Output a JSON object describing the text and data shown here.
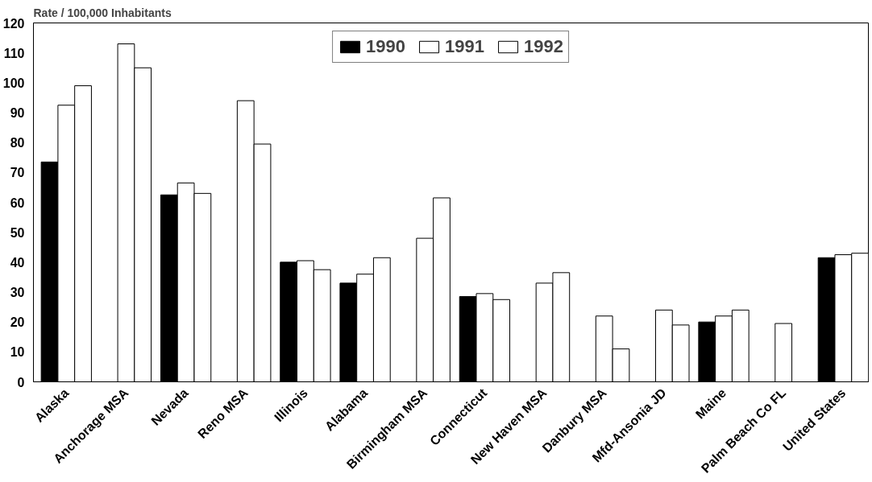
{
  "chart_data": {
    "type": "bar",
    "ylabel": "Rate / 100,000 Inhabitants",
    "categories": [
      "Alaska",
      "Anchorage MSA",
      "Nevada",
      "Reno MSA",
      "Illinois",
      "Alabama",
      "Birmingham MSA",
      "Connecticut",
      "New Haven MSA",
      "Danbury MSA",
      "Mfd-Ansonia JD",
      "Maine",
      "Palm Beach Co FL",
      "United States"
    ],
    "series": [
      {
        "name": "1990",
        "color": "#000000",
        "values": [
          73.5,
          null,
          62.5,
          null,
          40,
          33,
          null,
          28.5,
          null,
          null,
          null,
          20,
          null,
          41.5
        ]
      },
      {
        "name": "1991",
        "color": "#ffffff",
        "values": [
          92.5,
          113,
          66.5,
          94,
          40.5,
          36,
          48,
          29.5,
          33,
          22,
          24,
          22,
          19.5,
          42.5
        ]
      },
      {
        "name": "1992",
        "color": "#ffffff",
        "values": [
          99,
          105,
          63,
          79.5,
          37.5,
          41.5,
          61.5,
          27.5,
          36.5,
          11,
          19,
          24,
          null,
          43
        ]
      }
    ],
    "ylim": [
      0,
      120
    ],
    "yticks": [
      0,
      10,
      20,
      30,
      40,
      50,
      60,
      70,
      80,
      90,
      100,
      110,
      120
    ],
    "grid": false,
    "legend": "top"
  }
}
